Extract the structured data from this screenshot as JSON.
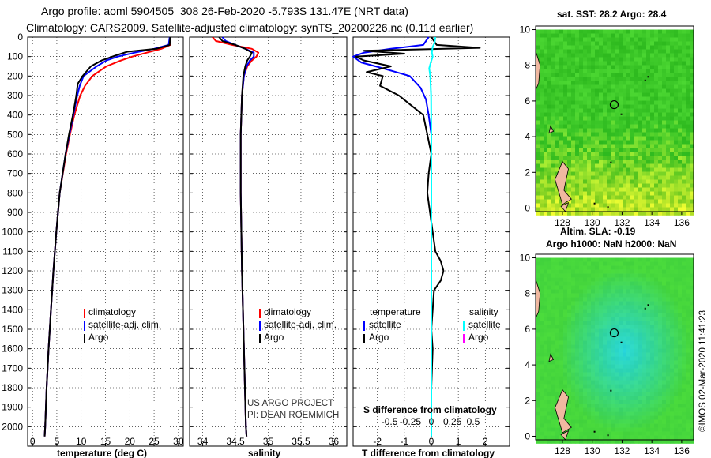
{
  "header": {
    "title_line1": "Argo profile: aoml 5904505_308 26-Feb-2020 -5.793S 131.47E (NRT data)",
    "title_line2": "Climatology: CARS2009. Satellite-adjusted climatology: synTS_20200226.nc (0.11d earlier)"
  },
  "colors": {
    "climatology": "#ff0000",
    "satellite": "#0000ff",
    "argo": "#000000",
    "sal_satellite": "#00ffff",
    "sal_argo": "#ff00ff",
    "land": "#f0b8a0"
  },
  "credits": {
    "line1": "US ARGO PROJECT",
    "line2": "PI: DEAN ROEMMICH",
    "imos": "©IMOS 02-Mar-2020 11:41:23"
  },
  "chart_data": [
    {
      "type": "line",
      "panel": "temperature",
      "xlabel": "temperature (deg C)",
      "xlim": [
        -1,
        31
      ],
      "xticks": [
        0,
        5,
        10,
        15,
        20,
        25,
        30
      ],
      "ylim": [
        2100,
        0
      ],
      "yticks": [
        0,
        100,
        200,
        300,
        400,
        500,
        600,
        700,
        800,
        900,
        1000,
        1100,
        1200,
        1300,
        1400,
        1500,
        1600,
        1700,
        1800,
        1900,
        2000
      ],
      "legend": [
        "climatology",
        "satellite-adj. clim.",
        "Argo"
      ],
      "series": [
        {
          "name": "climatology",
          "color": "#ff0000",
          "depth": [
            0,
            40,
            60,
            80,
            100,
            120,
            150,
            200,
            250,
            300,
            400,
            500,
            600,
            800,
            1000,
            1200,
            1400,
            1600,
            1800,
            2000,
            2050
          ],
          "values": [
            28.4,
            28.3,
            26.5,
            23.5,
            20.5,
            18.2,
            15.2,
            12.3,
            10.8,
            9.8,
            8.6,
            7.7,
            6.9,
            5.6,
            4.9,
            4.3,
            3.8,
            3.3,
            2.9,
            2.6,
            2.5
          ]
        },
        {
          "name": "satellite-adj. clim.",
          "color": "#0000ff",
          "depth": [
            0,
            40,
            60,
            80,
            100,
            120,
            150,
            200,
            250,
            300,
            400,
            500,
            600,
            800,
            1000,
            1200,
            1400,
            1600,
            1800,
            2000,
            2050
          ],
          "values": [
            28.2,
            28.0,
            25.0,
            21.0,
            17.5,
            15.2,
            13.2,
            10.5,
            9.7,
            9.2,
            8.4,
            7.6,
            6.8,
            5.6,
            4.9,
            4.3,
            3.8,
            3.3,
            2.9,
            2.6,
            2.5
          ]
        },
        {
          "name": "Argo",
          "color": "#000000",
          "depth": [
            0,
            40,
            60,
            75,
            95,
            120,
            150,
            200,
            240,
            300,
            400,
            500,
            600,
            800,
            1000,
            1200,
            1400,
            1600,
            1800,
            2000,
            2050
          ],
          "values": [
            28.3,
            28.2,
            25.5,
            19.5,
            17.0,
            14.2,
            12.0,
            10.3,
            9.3,
            9.0,
            8.3,
            7.5,
            6.8,
            5.6,
            4.9,
            4.3,
            3.8,
            3.3,
            2.9,
            2.6,
            2.5
          ]
        }
      ]
    },
    {
      "type": "line",
      "panel": "salinity",
      "xlabel": "salinity",
      "xlim": [
        33.8,
        36.2
      ],
      "xticks": [
        34,
        34.5,
        35,
        35.5,
        36
      ],
      "ylim": [
        2100,
        0
      ],
      "legend": [
        "climatology",
        "satellite-adj. clim.",
        "Argo"
      ],
      "series": [
        {
          "name": "climatology",
          "color": "#ff0000",
          "depth": [
            0,
            20,
            40,
            60,
            80,
            100,
            120,
            150,
            200,
            300,
            500,
            800,
            1200,
            1600,
            2000,
            2050
          ],
          "values": [
            34.15,
            34.2,
            34.45,
            34.75,
            34.85,
            34.82,
            34.75,
            34.68,
            34.63,
            34.6,
            34.58,
            34.58,
            34.6,
            34.63,
            34.66,
            34.67
          ]
        },
        {
          "name": "satellite-adj. clim.",
          "color": "#0000ff",
          "depth": [
            0,
            20,
            40,
            60,
            80,
            100,
            120,
            150,
            200,
            300,
            500,
            800,
            1200,
            1600,
            2000,
            2050
          ],
          "values": [
            34.3,
            34.35,
            34.5,
            34.65,
            34.78,
            34.78,
            34.72,
            34.67,
            34.63,
            34.6,
            34.58,
            34.58,
            34.6,
            34.63,
            34.66,
            34.67
          ]
        },
        {
          "name": "Argo",
          "color": "#000000",
          "depth": [
            0,
            20,
            40,
            60,
            80,
            100,
            120,
            150,
            200,
            300,
            500,
            800,
            1200,
            1600,
            2000,
            2050
          ],
          "values": [
            34.25,
            34.3,
            34.5,
            34.65,
            34.75,
            34.72,
            34.68,
            34.65,
            34.62,
            34.6,
            34.58,
            34.58,
            34.6,
            34.63,
            34.66,
            34.67
          ]
        }
      ]
    },
    {
      "type": "line",
      "panel": "differences",
      "xlabel": "T difference from climatology",
      "xlim": [
        -2.9,
        2.9
      ],
      "xticks": [
        -2,
        -1,
        0,
        1,
        2
      ],
      "s_label": "S difference from climatology",
      "s_ticks": [
        "-0.5",
        "-0.25",
        "0",
        "0.25",
        "0.5"
      ],
      "ylim": [
        2100,
        0
      ],
      "legend_left_title": "temperature",
      "legend_right_title": "salinity",
      "legend_left": [
        "satellite",
        "Argo"
      ],
      "legend_right": [
        "satellite",
        "Argo"
      ],
      "series": [
        {
          "name": "T satellite",
          "color": "#0000ff",
          "depth": [
            0,
            40,
            60,
            80,
            100,
            130,
            160,
            200,
            260,
            320,
            400,
            500,
            600,
            700,
            800,
            900,
            1000,
            1200,
            1500,
            1800,
            2050
          ],
          "values": [
            -0.1,
            -0.3,
            -1.5,
            -2.5,
            -2.9,
            -2.6,
            -1.8,
            -0.8,
            -0.4,
            -0.2,
            -0.1,
            0,
            0,
            0,
            0,
            0,
            0,
            0,
            0,
            0,
            0
          ]
        },
        {
          "name": "T Argo",
          "color": "#000000",
          "depth": [
            0,
            40,
            55,
            70,
            85,
            100,
            120,
            150,
            180,
            200,
            250,
            300,
            400,
            500,
            600,
            700,
            800,
            900,
            1000,
            1100,
            1150,
            1200,
            1250,
            1300,
            1400,
            1500,
            1600,
            1800,
            2000,
            2050
          ],
          "values": [
            0,
            0.2,
            1.8,
            -2.5,
            -1.0,
            -2.8,
            -2.5,
            -1.5,
            -2.4,
            -1.8,
            -1.9,
            -1.2,
            -0.3,
            -0.15,
            0,
            -0.1,
            -0.15,
            -0.05,
            0.05,
            0.15,
            0.35,
            0.45,
            0.35,
            0.1,
            0.05,
            0,
            0.05,
            0,
            0,
            0
          ]
        },
        {
          "name": "S satellite",
          "color": "#00ffff",
          "depth": [
            0,
            30,
            50,
            80,
            100,
            130,
            160,
            200,
            300,
            500,
            800,
            1200,
            1600,
            2050
          ],
          "values": [
            0.15,
            0.12,
            0.05,
            0.02,
            0.05,
            -0.02,
            -0.08,
            -0.04,
            -0.01,
            0,
            0,
            0,
            0,
            0
          ]
        }
      ]
    },
    {
      "type": "heatmap",
      "panel": "sst_map",
      "title": "sat. SST: 28.2 Argo: 28.4",
      "xticks": [
        128,
        130,
        132,
        134,
        136
      ],
      "yticks": [
        0,
        2,
        4,
        6,
        8,
        10
      ],
      "xlim": [
        126.2,
        136.8
      ],
      "ylim": [
        -0.2,
        10.2
      ],
      "float_position": {
        "lon": 131.47,
        "lat": 5.793
      }
    },
    {
      "type": "heatmap",
      "panel": "sla_map",
      "title": "Altim. SLA: -0.19",
      "subtitle": "Argo h1000: NaN h2000: NaN",
      "xticks": [
        128,
        130,
        132,
        134,
        136
      ],
      "yticks": [
        0,
        2,
        4,
        6,
        8,
        10
      ],
      "xlim": [
        126.2,
        136.8
      ],
      "ylim": [
        -0.2,
        10.2
      ],
      "float_position": {
        "lon": 131.47,
        "lat": 5.793
      }
    }
  ]
}
